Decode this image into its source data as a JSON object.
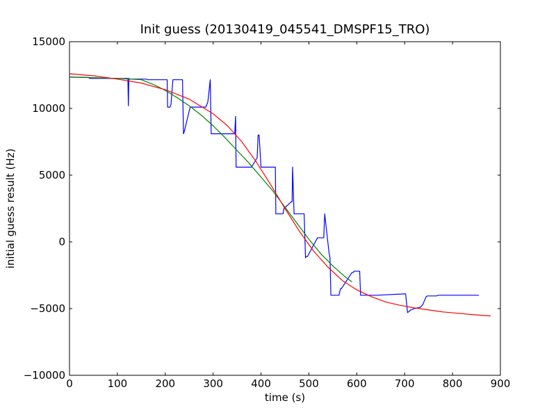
{
  "chart_data": {
    "type": "line",
    "title": "Init guess (20130419_045541_DMSPF15_TRO)",
    "xlabel": "time (s)",
    "ylabel": "initial guess result (Hz)",
    "xlim": [
      0,
      900
    ],
    "ylim": [
      -10000,
      15000
    ],
    "xticks": [
      0,
      100,
      200,
      300,
      400,
      500,
      600,
      700,
      800,
      900
    ],
    "yticks": [
      -10000,
      -5000,
      0,
      5000,
      10000,
      15000
    ],
    "xtick_labels": [
      "0",
      "100",
      "200",
      "300",
      "400",
      "500",
      "600",
      "700",
      "800",
      "900"
    ],
    "ytick_labels": [
      "−10000",
      "−5000",
      "0",
      "5000",
      "10000",
      "15000"
    ],
    "grid": false,
    "legend": "none",
    "series": [
      {
        "color": "#0000ff",
        "x": [
          0,
          40,
          42,
          122,
          123,
          124,
          126,
          127,
          161,
          163,
          204,
          205,
          210,
          212,
          216,
          218,
          236,
          238,
          240,
          252,
          255,
          285,
          289,
          294,
          296,
          345,
          347,
          348,
          350,
          380,
          392,
          394,
          396,
          400,
          430,
          431,
          443,
          446,
          448,
          463,
          465,
          466,
          469,
          475,
          488,
          490,
          493,
          494,
          497,
          518,
          520,
          522,
          523,
          531,
          533,
          542,
          544,
          546,
          547,
          549,
          563,
          566,
          568,
          590,
          593,
          594,
          606,
          608,
          610,
          612,
          635,
          637,
          639,
          641,
          700,
          702,
          706,
          713,
          720,
          727,
          733,
          738,
          745,
          748,
          750,
          766,
          770,
          855
        ],
        "y": [
          12350,
          12330,
          12250,
          12250,
          10200,
          12250,
          12200,
          12200,
          12200,
          12150,
          12150,
          10100,
          10100,
          10300,
          12150,
          12150,
          12150,
          8100,
          8300,
          10100,
          10100,
          10100,
          10500,
          12150,
          8100,
          8100,
          9400,
          5600,
          5600,
          5600,
          6300,
          8000,
          8000,
          5600,
          5600,
          2100,
          2100,
          2100,
          2500,
          3000,
          3000,
          5600,
          2100,
          2100,
          2100,
          2100,
          -1200,
          -1100,
          -1100,
          300,
          300,
          300,
          300,
          300,
          2100,
          -800,
          -1200,
          -4000,
          -4000,
          -4000,
          -4000,
          -3500,
          -3500,
          -2300,
          -2300,
          -2200,
          -2200,
          -4000,
          -4000,
          -4000,
          -4000,
          -4000,
          -4000,
          -4000,
          -3900,
          -3900,
          -5300,
          -5100,
          -5000,
          -4950,
          -4900,
          -4700,
          -4100,
          -4050,
          -4050,
          -4050,
          -4000,
          -4000
        ]
      },
      {
        "color": "#008000",
        "x": [
          0,
          50,
          100,
          150,
          175,
          200,
          225,
          250,
          275,
          300,
          325,
          350,
          375,
          400,
          425,
          450,
          475,
          500,
          525,
          550,
          575,
          590
        ],
        "y": [
          12350,
          12300,
          12250,
          12150,
          11800,
          11350,
          10800,
          10200,
          9500,
          8700,
          7800,
          6850,
          5900,
          4850,
          3800,
          2600,
          1400,
          200,
          -900,
          -1800,
          -2600,
          -3000
        ]
      },
      {
        "color": "#ff0000",
        "x": [
          0,
          50,
          100,
          150,
          200,
          250,
          300,
          330,
          360,
          390,
          420,
          450,
          480,
          510,
          540,
          570,
          600,
          630,
          660,
          690,
          720,
          750,
          780,
          810,
          840,
          880
        ],
        "y": [
          12600,
          12450,
          12200,
          11900,
          11400,
          10700,
          9600,
          8700,
          7500,
          6000,
          4300,
          2500,
          800,
          -700,
          -1900,
          -2900,
          -3600,
          -4100,
          -4500,
          -4750,
          -4950,
          -5100,
          -5250,
          -5350,
          -5450,
          -5550
        ]
      }
    ]
  }
}
